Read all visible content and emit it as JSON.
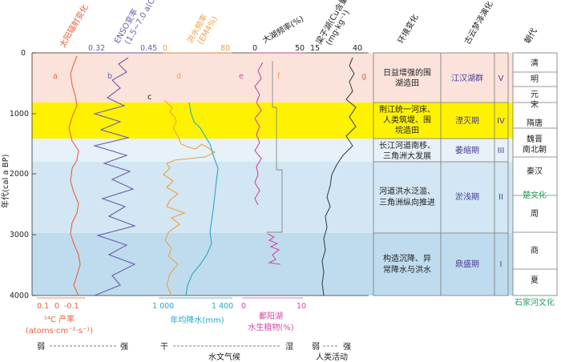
{
  "columns": {
    "solar": "太阳辐射变化",
    "enso": "ENSO变率",
    "enso_sub": "(1.5~7.0 a(C)",
    "flood": "洪水频率",
    "flood_sub": "(EM4%)",
    "lake": "大湖频率(%)",
    "cu": "梁子湖(Cu含量",
    "cu_sub": "(mg·kg⁻¹)",
    "env": "环境变化",
    "yunmeng": "古云梦泽演化",
    "dynasty": "朝代"
  },
  "top_ticks": {
    "enso": [
      "0.32",
      "0.45"
    ],
    "flood": [
      "0",
      "80"
    ],
    "lake": [
      "0",
      "50"
    ],
    "cu": [
      "15",
      "40"
    ]
  },
  "curve_letters": [
    "a",
    "b",
    "c",
    "d",
    "e",
    "f",
    "g"
  ],
  "y_axis": {
    "label": "年代(cal a BP)",
    "ticks": [
      "0",
      "1000",
      "2000",
      "3000",
      "4000"
    ]
  },
  "bottom_axes": {
    "c14": {
      "ticks": [
        "0.1",
        "0",
        "-0.1"
      ],
      "label1": "¹⁴C 产率",
      "label2": "(atoms·cm⁻²·s⁻¹)"
    },
    "precip": {
      "ticks": [
        "1 000",
        "1 400"
      ],
      "label": "年均降水(mm)"
    },
    "poyang": {
      "ticks": [
        "0",
        "10"
      ],
      "label1": "鄱阳湖",
      "label2": "水生植物(%)"
    }
  },
  "culture_top": "楚文化",
  "culture_bottom": "石家河文化",
  "stages": [
    {
      "env": [
        "日益增强的围",
        "湖造田"
      ],
      "name": "江汉湖群",
      "numeral": "V"
    },
    {
      "env": [
        "荆江统一河床、",
        "人类筑堤、围",
        "垸造田"
      ],
      "name": "湮灭期",
      "numeral": "IV"
    },
    {
      "env": [
        "长江河道南移、",
        "三角洲大发展"
      ],
      "name": "萎缩期",
      "numeral": "III"
    },
    {
      "env": [
        "河道洪水泛滥、",
        "三角洲纵向推进"
      ],
      "name": "淤浅期",
      "numeral": "II"
    },
    {
      "env": [
        "构造沉降、异",
        "常降水与洪水"
      ],
      "name": "鼎盛期",
      "numeral": "I"
    }
  ],
  "dynasties": [
    "清",
    "明",
    "元",
    "宋",
    "隋唐",
    "魏晋",
    "南北朝",
    "秦汉",
    "周",
    "商",
    "夏"
  ],
  "footer": {
    "weak1": "弱",
    "strong1": "强",
    "dry": "干",
    "wet": "湿",
    "hydro": "水文气候",
    "weak2": "弱",
    "strong2": "强",
    "human": "人类活动"
  },
  "colors": {
    "band_pink": "#fbe3dc",
    "band_yellow": "#fff200",
    "band_pale": "#e6f1f8",
    "band_blue_light": "#d2e6f3",
    "band_blue": "#bfdcee",
    "solar": "#e8623a",
    "enso": "#6a5ca8",
    "flood": "#f0a040",
    "precip": "#2aa6c8",
    "lake": "#d04aa0",
    "cu": "#444444",
    "culture": "#22a35a"
  }
}
